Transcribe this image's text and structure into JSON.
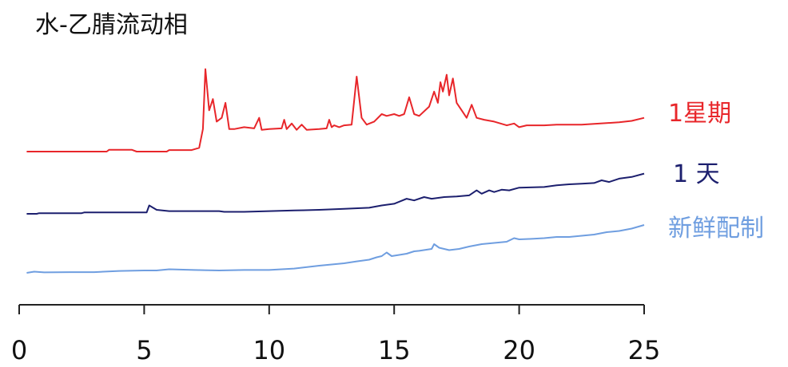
{
  "title": "水-乙腈流动相",
  "chart_data": {
    "type": "line",
    "title": "水-乙腈流动相",
    "xlim": [
      0,
      25
    ],
    "x_ticks": [
      0,
      5,
      10,
      15,
      20,
      25
    ],
    "y_axis": "none (traces offset vertically, arbitrary intensity)",
    "grid": false,
    "legend": "right, labels at end of each trace",
    "series": [
      {
        "name": "1星期",
        "color": "#e8262a",
        "offset": 2,
        "points": [
          [
            0.3,
            0.0
          ],
          [
            3.5,
            0.0
          ],
          [
            3.6,
            0.05
          ],
          [
            4.5,
            0.05
          ],
          [
            4.7,
            0.0
          ],
          [
            5.9,
            0.0
          ],
          [
            6.0,
            0.04
          ],
          [
            6.9,
            0.04
          ],
          [
            7.2,
            0.1
          ],
          [
            7.35,
            0.6
          ],
          [
            7.45,
            2.2
          ],
          [
            7.6,
            1.1
          ],
          [
            7.75,
            1.4
          ],
          [
            7.9,
            0.8
          ],
          [
            8.1,
            0.9
          ],
          [
            8.25,
            1.3
          ],
          [
            8.4,
            0.6
          ],
          [
            8.6,
            0.6
          ],
          [
            9.0,
            0.65
          ],
          [
            9.4,
            0.62
          ],
          [
            9.6,
            0.9
          ],
          [
            9.7,
            0.58
          ],
          [
            10.0,
            0.6
          ],
          [
            10.5,
            0.62
          ],
          [
            10.6,
            0.85
          ],
          [
            10.7,
            0.6
          ],
          [
            10.9,
            0.75
          ],
          [
            11.1,
            0.58
          ],
          [
            11.3,
            0.72
          ],
          [
            11.5,
            0.58
          ],
          [
            12.0,
            0.6
          ],
          [
            12.3,
            0.62
          ],
          [
            12.4,
            0.85
          ],
          [
            12.5,
            0.65
          ],
          [
            12.6,
            0.7
          ],
          [
            12.8,
            0.65
          ],
          [
            13.0,
            0.7
          ],
          [
            13.3,
            0.72
          ],
          [
            13.5,
            2.0
          ],
          [
            13.7,
            0.9
          ],
          [
            13.9,
            0.72
          ],
          [
            14.2,
            0.8
          ],
          [
            14.5,
            1.0
          ],
          [
            14.7,
            0.95
          ],
          [
            15.0,
            1.0
          ],
          [
            15.2,
            0.95
          ],
          [
            15.4,
            1.0
          ],
          [
            15.6,
            1.45
          ],
          [
            15.8,
            1.0
          ],
          [
            16.0,
            0.95
          ],
          [
            16.4,
            1.2
          ],
          [
            16.6,
            1.6
          ],
          [
            16.75,
            1.3
          ],
          [
            16.85,
            1.85
          ],
          [
            16.95,
            1.6
          ],
          [
            17.1,
            2.05
          ],
          [
            17.2,
            1.5
          ],
          [
            17.35,
            1.95
          ],
          [
            17.5,
            1.3
          ],
          [
            17.7,
            1.1
          ],
          [
            17.9,
            0.9
          ],
          [
            18.1,
            1.25
          ],
          [
            18.3,
            0.9
          ],
          [
            18.6,
            0.85
          ],
          [
            19.0,
            0.8
          ],
          [
            19.5,
            0.7
          ],
          [
            19.8,
            0.75
          ],
          [
            20.0,
            0.65
          ],
          [
            20.3,
            0.7
          ],
          [
            21.0,
            0.7
          ],
          [
            21.5,
            0.72
          ],
          [
            22.0,
            0.72
          ],
          [
            22.5,
            0.72
          ],
          [
            23.0,
            0.74
          ],
          [
            23.5,
            0.76
          ],
          [
            24.0,
            0.78
          ],
          [
            24.5,
            0.82
          ],
          [
            25.0,
            0.9
          ]
        ]
      },
      {
        "name": "1 天",
        "color": "#1c1f6e",
        "offset": 1,
        "points": [
          [
            0.3,
            0.0
          ],
          [
            0.7,
            0.0
          ],
          [
            0.8,
            0.02
          ],
          [
            2.5,
            0.02
          ],
          [
            2.6,
            0.04
          ],
          [
            5.1,
            0.04
          ],
          [
            5.2,
            0.25
          ],
          [
            5.5,
            0.12
          ],
          [
            6.0,
            0.08
          ],
          [
            8.0,
            0.08
          ],
          [
            8.2,
            0.06
          ],
          [
            9.0,
            0.06
          ],
          [
            10.0,
            0.08
          ],
          [
            11.0,
            0.1
          ],
          [
            12.0,
            0.12
          ],
          [
            13.0,
            0.15
          ],
          [
            14.0,
            0.18
          ],
          [
            14.5,
            0.25
          ],
          [
            15.0,
            0.3
          ],
          [
            15.5,
            0.45
          ],
          [
            15.8,
            0.4
          ],
          [
            16.2,
            0.5
          ],
          [
            16.5,
            0.45
          ],
          [
            17.0,
            0.5
          ],
          [
            17.5,
            0.52
          ],
          [
            18.0,
            0.55
          ],
          [
            18.3,
            0.7
          ],
          [
            18.5,
            0.6
          ],
          [
            18.8,
            0.7
          ],
          [
            19.0,
            0.65
          ],
          [
            19.3,
            0.72
          ],
          [
            19.6,
            0.7
          ],
          [
            20.0,
            0.78
          ],
          [
            21.0,
            0.8
          ],
          [
            21.5,
            0.85
          ],
          [
            22.0,
            0.88
          ],
          [
            22.5,
            0.9
          ],
          [
            23.0,
            0.92
          ],
          [
            23.3,
            1.0
          ],
          [
            23.6,
            0.95
          ],
          [
            24.0,
            1.05
          ],
          [
            24.5,
            1.1
          ],
          [
            25.0,
            1.2
          ]
        ]
      },
      {
        "name": "新鲜配制",
        "color": "#6f9ee0",
        "offset": 0,
        "points": [
          [
            0.3,
            0.0
          ],
          [
            0.6,
            0.05
          ],
          [
            1.0,
            0.02
          ],
          [
            2.0,
            0.03
          ],
          [
            3.0,
            0.03
          ],
          [
            4.0,
            0.08
          ],
          [
            5.0,
            0.1
          ],
          [
            5.5,
            0.1
          ],
          [
            6.0,
            0.15
          ],
          [
            7.0,
            0.12
          ],
          [
            8.0,
            0.1
          ],
          [
            9.0,
            0.12
          ],
          [
            10.0,
            0.12
          ],
          [
            11.0,
            0.18
          ],
          [
            12.0,
            0.3
          ],
          [
            13.0,
            0.4
          ],
          [
            13.5,
            0.48
          ],
          [
            14.0,
            0.55
          ],
          [
            14.3,
            0.65
          ],
          [
            14.5,
            0.7
          ],
          [
            14.7,
            0.85
          ],
          [
            14.9,
            0.7
          ],
          [
            15.2,
            0.75
          ],
          [
            15.5,
            0.8
          ],
          [
            15.8,
            0.9
          ],
          [
            16.0,
            0.92
          ],
          [
            16.5,
            1.0
          ],
          [
            16.6,
            1.2
          ],
          [
            16.8,
            1.05
          ],
          [
            17.2,
            0.95
          ],
          [
            17.6,
            1.0
          ],
          [
            18.0,
            1.1
          ],
          [
            18.5,
            1.2
          ],
          [
            19.0,
            1.25
          ],
          [
            19.5,
            1.3
          ],
          [
            19.8,
            1.45
          ],
          [
            20.0,
            1.4
          ],
          [
            20.5,
            1.42
          ],
          [
            21.0,
            1.45
          ],
          [
            21.5,
            1.5
          ],
          [
            22.0,
            1.5
          ],
          [
            22.5,
            1.55
          ],
          [
            23.0,
            1.6
          ],
          [
            23.5,
            1.7
          ],
          [
            24.0,
            1.75
          ],
          [
            24.5,
            1.85
          ],
          [
            25.0,
            2.0
          ]
        ]
      }
    ]
  }
}
